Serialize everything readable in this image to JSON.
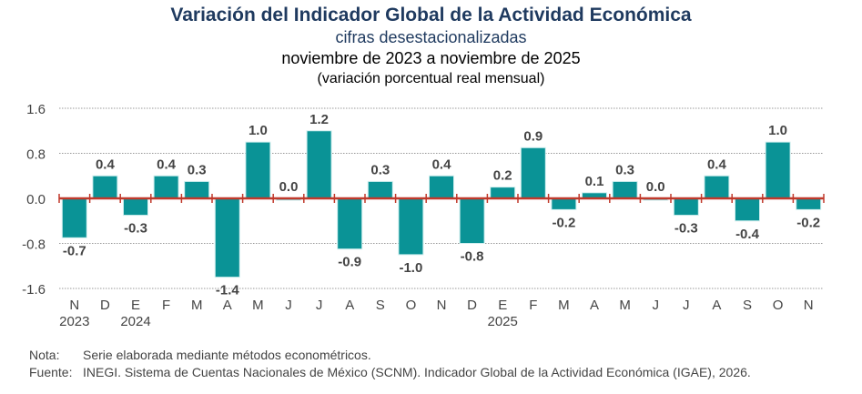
{
  "chart_data": {
    "type": "bar",
    "title": "Variación del Indicador Global de la Actividad Económica",
    "subtitle": [
      "cifras desestacionalizadas",
      "noviembre de 2023 a noviembre de 2025",
      "(variación porcentual real mensual)"
    ],
    "categories": [
      "N",
      "D",
      "E",
      "F",
      "M",
      "A",
      "M",
      "J",
      "J",
      "A",
      "S",
      "O",
      "N",
      "D",
      "E",
      "F",
      "M",
      "A",
      "M",
      "J",
      "J",
      "A",
      "S",
      "O",
      "N"
    ],
    "years": [
      {
        "label": "2023",
        "index": 0
      },
      {
        "label": "2024",
        "index": 2
      },
      {
        "label": "2025",
        "index": 14
      }
    ],
    "values": [
      -0.7,
      0.4,
      -0.3,
      0.4,
      0.3,
      -1.4,
      1.0,
      0.0,
      1.2,
      -0.9,
      0.3,
      -1.0,
      0.4,
      -0.8,
      0.2,
      0.9,
      -0.2,
      0.1,
      0.3,
      0.0,
      -0.3,
      0.4,
      -0.4,
      1.0,
      -0.2
    ],
    "ylim": [
      -1.6,
      1.6
    ],
    "yticks": [
      "1.6",
      "0.8",
      "0.0",
      "-0.8",
      "-1.6"
    ],
    "grid": true,
    "colors": {
      "bar": "#0a9396",
      "zero_line": "#c0392b",
      "title": "#1f3a5f"
    }
  },
  "notes": {
    "nota_label": "Nota:",
    "nota_text": "Serie elaborada mediante métodos econométricos.",
    "fuente_label": "Fuente:",
    "fuente_text": "INEGI. Sistema de Cuentas Nacionales de México (SCNM). Indicador Global de la Actividad Económica (IGAE), 2026."
  }
}
